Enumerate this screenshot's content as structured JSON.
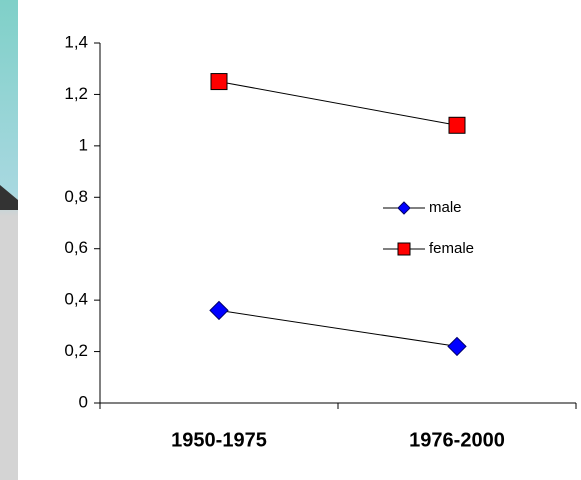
{
  "chart_data": {
    "type": "line",
    "categories": [
      "1950-1975",
      "1976-2000"
    ],
    "series": [
      {
        "name": "male",
        "color": "#0000ff",
        "marker": "diamond",
        "values": [
          0.36,
          0.22
        ]
      },
      {
        "name": "female",
        "color": "#ff0000",
        "marker": "square",
        "values": [
          1.25,
          1.08
        ]
      }
    ],
    "ylim": [
      0,
      1.4
    ],
    "yticks": [
      0,
      {
        "value": 0.2,
        "label": "0,2"
      },
      {
        "value": 0.4,
        "label": "0,4"
      },
      {
        "value": 0.6,
        "label": "0,6"
      },
      {
        "value": 0.8,
        "label": "0,8"
      },
      1,
      {
        "value": 1.2,
        "label": "1,2"
      },
      {
        "value": 1.4,
        "label": "1,4"
      }
    ],
    "grid": false,
    "legend": "right"
  }
}
